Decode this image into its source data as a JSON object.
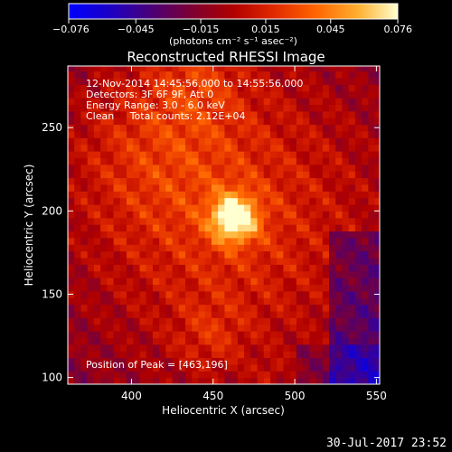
{
  "chart_data": {
    "type": "heatmap",
    "title": "Reconstructed RHESSI Image",
    "xlabel": "Heliocentric X (arcsec)",
    "ylabel": "Heliocentric Y (arcsec)",
    "xlim": [
      361,
      552
    ],
    "ylim": [
      96,
      287
    ],
    "x_ticks": [
      400,
      450,
      500,
      550
    ],
    "y_ticks": [
      100,
      150,
      200,
      250
    ],
    "colorbar": {
      "min": -0.076,
      "max": 0.076,
      "ticks": [
        "−0.076",
        "−0.045",
        "−0.015",
        "0.015",
        "0.045",
        "0.076"
      ],
      "tick_values": [
        -0.076,
        -0.045,
        -0.015,
        0.015,
        0.045,
        0.076
      ],
      "units_label": "(photons cm⁻² s⁻¹ asec⁻²)"
    },
    "info_lines": [
      "12-Nov-2014 14:45:56.000 to 14:55:56.000",
      "Detectors: 3F 6F 9F, Att 0",
      "Energy Range: 3.0 - 6.0 keV",
      "Clean     Total counts: 2.12E+04"
    ],
    "peak_label": "Position of Peak = [463,196]",
    "peak": {
      "x": 463,
      "y": 196,
      "value": 0.076
    }
  },
  "footer": {
    "date": "30-Jul-2017 23:52"
  }
}
